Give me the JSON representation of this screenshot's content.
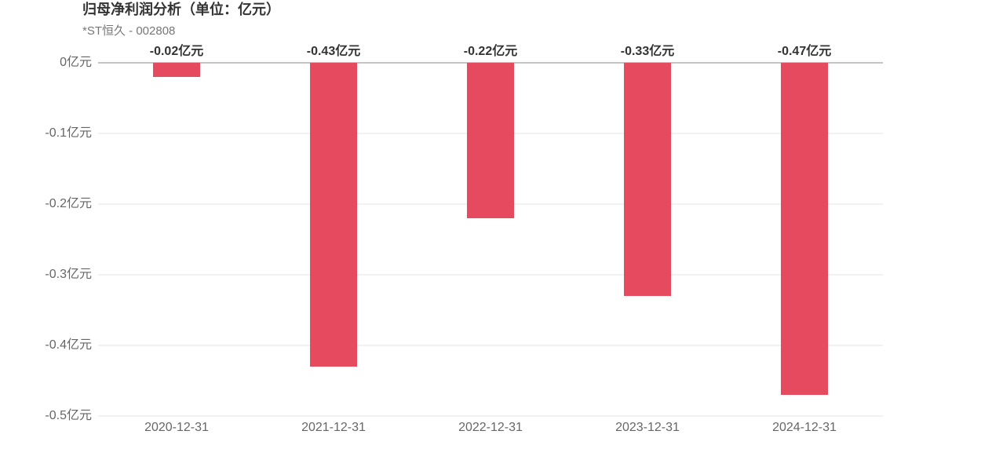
{
  "chart_data": {
    "type": "bar",
    "title": "归母净利润分析（单位：亿元）",
    "subtitle": "*ST恒久 - 002808",
    "categories": [
      "2020-12-31",
      "2021-12-31",
      "2022-12-31",
      "2023-12-31",
      "2024-12-31"
    ],
    "values": [
      -0.02,
      -0.43,
      -0.22,
      -0.33,
      -0.47
    ],
    "value_labels": [
      "-0.02亿元",
      "-0.43亿元",
      "-0.22亿元",
      "-0.33亿元",
      "-0.47亿元"
    ],
    "color": "#e64a5e",
    "ylim": [
      -0.5,
      0
    ],
    "yticks": [
      {
        "value": 0,
        "label": "0亿元"
      },
      {
        "value": -0.1,
        "label": "-0.1亿元"
      },
      {
        "value": -0.2,
        "label": "-0.2亿元"
      },
      {
        "value": -0.3,
        "label": "-0.3亿元"
      },
      {
        "value": -0.4,
        "label": "-0.4亿元"
      },
      {
        "value": -0.5,
        "label": "-0.5亿元"
      }
    ],
    "grid": true
  }
}
